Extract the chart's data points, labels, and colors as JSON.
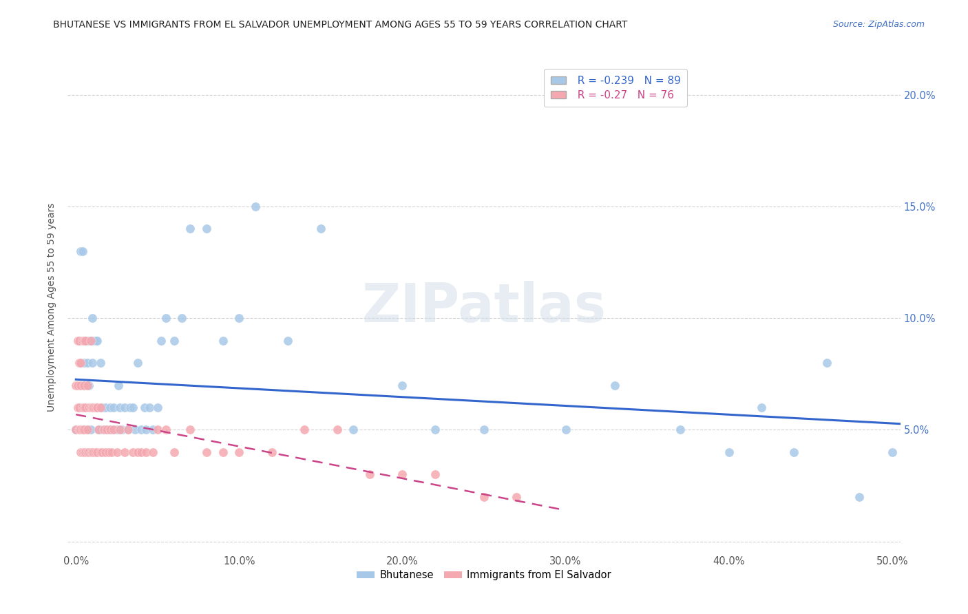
{
  "title": "BHUTANESE VS IMMIGRANTS FROM EL SALVADOR UNEMPLOYMENT AMONG AGES 55 TO 59 YEARS CORRELATION CHART",
  "source": "Source: ZipAtlas.com",
  "ylabel": "Unemployment Among Ages 55 to 59 years",
  "xlim": [
    -0.005,
    0.505
  ],
  "ylim": [
    -0.005,
    0.215
  ],
  "xticks": [
    0.0,
    0.1,
    0.2,
    0.3,
    0.4,
    0.5
  ],
  "xticklabels": [
    "0.0%",
    "10.0%",
    "20.0%",
    "30.0%",
    "40.0%",
    "50.0%"
  ],
  "yticks": [
    0.0,
    0.05,
    0.1,
    0.15,
    0.2
  ],
  "yticklabels_left": [
    "",
    "",
    "",
    "",
    ""
  ],
  "yticklabels_right": [
    "",
    "5.0%",
    "10.0%",
    "15.0%",
    "20.0%"
  ],
  "color_bhutanese": "#a8c8e8",
  "color_elsalvador": "#f4a8b0",
  "line_color_bhutanese": "#3366cc",
  "line_color_elsalvador": "#cc4488",
  "R_bhutanese": -0.239,
  "N_bhutanese": 89,
  "R_elsalvador": -0.27,
  "N_elsalvador": 76,
  "watermark": "ZIPatlas",
  "bhutanese_x": [
    0.0,
    0.002,
    0.002,
    0.003,
    0.003,
    0.003,
    0.004,
    0.004,
    0.004,
    0.004,
    0.005,
    0.005,
    0.005,
    0.005,
    0.005,
    0.006,
    0.006,
    0.006,
    0.006,
    0.007,
    0.007,
    0.007,
    0.007,
    0.008,
    0.008,
    0.008,
    0.009,
    0.009,
    0.01,
    0.01,
    0.01,
    0.011,
    0.011,
    0.012,
    0.012,
    0.013,
    0.013,
    0.014,
    0.014,
    0.015,
    0.015,
    0.016,
    0.017,
    0.018,
    0.019,
    0.02,
    0.021,
    0.022,
    0.023,
    0.025,
    0.026,
    0.027,
    0.028,
    0.03,
    0.032,
    0.033,
    0.035,
    0.036,
    0.038,
    0.04,
    0.042,
    0.043,
    0.045,
    0.047,
    0.05,
    0.052,
    0.055,
    0.06,
    0.065,
    0.07,
    0.08,
    0.09,
    0.1,
    0.11,
    0.13,
    0.15,
    0.17,
    0.2,
    0.22,
    0.25,
    0.3,
    0.33,
    0.37,
    0.4,
    0.42,
    0.44,
    0.46,
    0.48,
    0.5
  ],
  "bhutanese_y": [
    0.05,
    0.06,
    0.09,
    0.08,
    0.09,
    0.13,
    0.05,
    0.06,
    0.09,
    0.13,
    0.04,
    0.05,
    0.07,
    0.08,
    0.09,
    0.04,
    0.05,
    0.06,
    0.09,
    0.04,
    0.05,
    0.08,
    0.09,
    0.05,
    0.07,
    0.09,
    0.05,
    0.09,
    0.06,
    0.08,
    0.1,
    0.06,
    0.09,
    0.06,
    0.09,
    0.06,
    0.09,
    0.05,
    0.06,
    0.05,
    0.08,
    0.06,
    0.05,
    0.06,
    0.05,
    0.05,
    0.06,
    0.05,
    0.06,
    0.05,
    0.07,
    0.06,
    0.05,
    0.06,
    0.05,
    0.06,
    0.06,
    0.05,
    0.08,
    0.05,
    0.06,
    0.05,
    0.06,
    0.05,
    0.06,
    0.09,
    0.1,
    0.09,
    0.1,
    0.14,
    0.14,
    0.09,
    0.1,
    0.15,
    0.09,
    0.14,
    0.05,
    0.07,
    0.05,
    0.05,
    0.05,
    0.07,
    0.05,
    0.04,
    0.06,
    0.04,
    0.08,
    0.02,
    0.04
  ],
  "elsalvador_x": [
    0.0,
    0.0,
    0.001,
    0.001,
    0.001,
    0.002,
    0.002,
    0.002,
    0.002,
    0.003,
    0.003,
    0.003,
    0.003,
    0.004,
    0.004,
    0.004,
    0.004,
    0.005,
    0.005,
    0.005,
    0.005,
    0.005,
    0.006,
    0.006,
    0.006,
    0.007,
    0.007,
    0.007,
    0.008,
    0.008,
    0.009,
    0.009,
    0.009,
    0.01,
    0.01,
    0.011,
    0.011,
    0.012,
    0.012,
    0.013,
    0.013,
    0.014,
    0.015,
    0.015,
    0.016,
    0.017,
    0.018,
    0.019,
    0.02,
    0.021,
    0.022,
    0.023,
    0.025,
    0.027,
    0.03,
    0.032,
    0.035,
    0.038,
    0.04,
    0.043,
    0.047,
    0.05,
    0.055,
    0.06,
    0.07,
    0.08,
    0.09,
    0.1,
    0.12,
    0.14,
    0.16,
    0.18,
    0.2,
    0.22,
    0.25,
    0.27
  ],
  "elsalvador_y": [
    0.05,
    0.07,
    0.06,
    0.07,
    0.09,
    0.05,
    0.06,
    0.08,
    0.09,
    0.04,
    0.05,
    0.07,
    0.08,
    0.04,
    0.05,
    0.06,
    0.09,
    0.04,
    0.05,
    0.06,
    0.07,
    0.09,
    0.04,
    0.06,
    0.09,
    0.04,
    0.05,
    0.07,
    0.04,
    0.06,
    0.04,
    0.06,
    0.09,
    0.04,
    0.06,
    0.04,
    0.06,
    0.04,
    0.06,
    0.04,
    0.06,
    0.05,
    0.04,
    0.06,
    0.04,
    0.05,
    0.04,
    0.05,
    0.04,
    0.05,
    0.04,
    0.05,
    0.04,
    0.05,
    0.04,
    0.05,
    0.04,
    0.04,
    0.04,
    0.04,
    0.04,
    0.05,
    0.05,
    0.04,
    0.05,
    0.04,
    0.04,
    0.04,
    0.04,
    0.05,
    0.05,
    0.03,
    0.03,
    0.03,
    0.02,
    0.02
  ]
}
